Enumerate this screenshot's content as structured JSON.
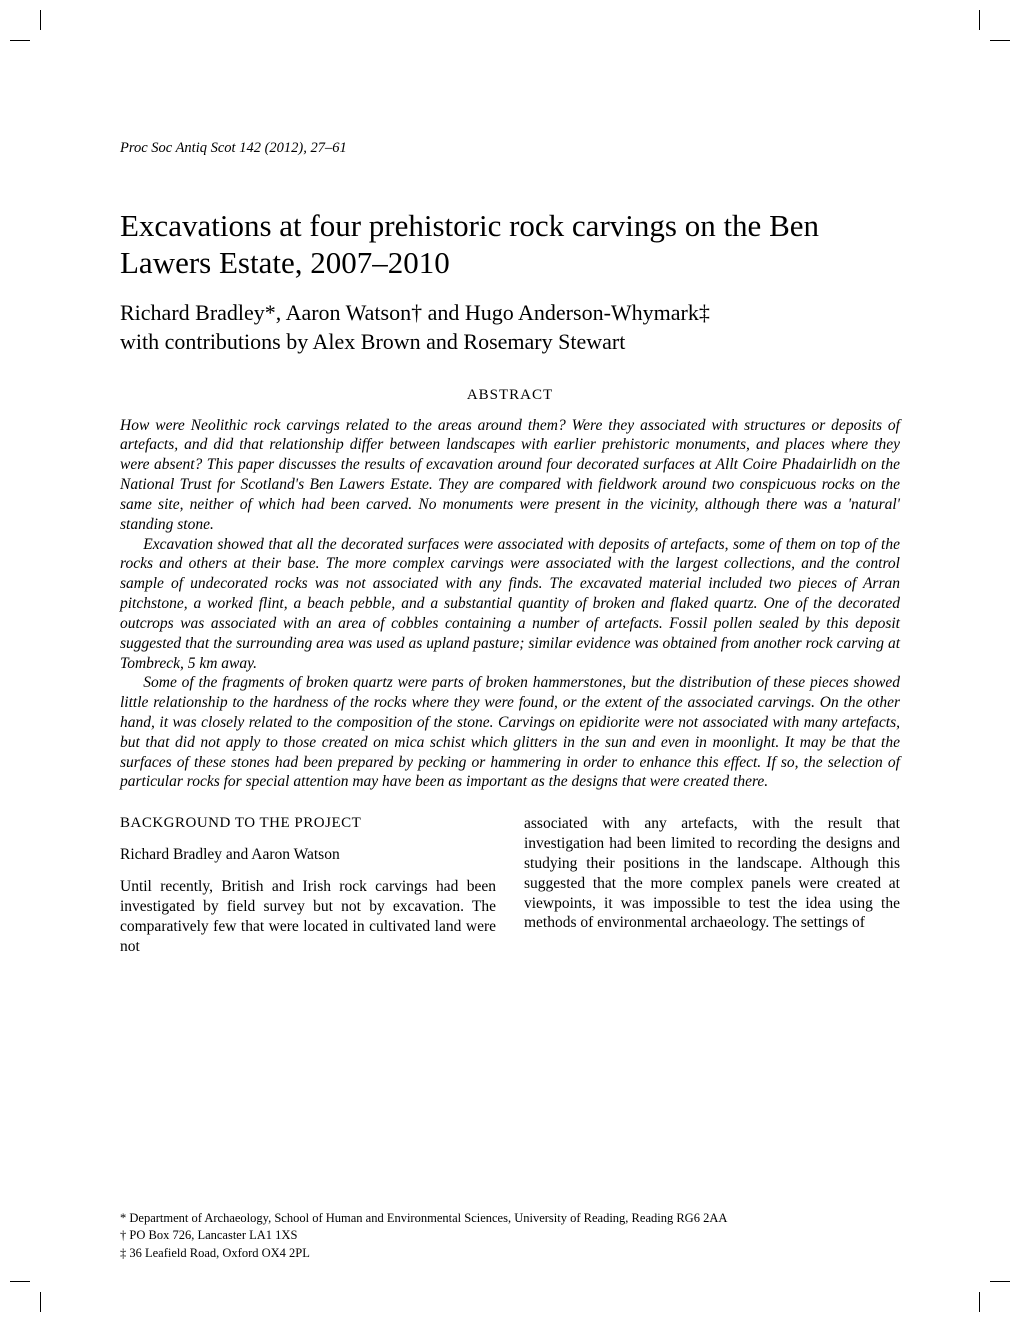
{
  "running_head": "Proc Soc Antiq Scot 142 (2012), 27–61",
  "title": "Excavations at four prehistoric rock carvings on the Ben Lawers Estate, 2007–2010",
  "authors_line1": "Richard Bradley*, Aaron Watson† and Hugo Anderson-Whymark‡",
  "authors_line2": "with contributions by Alex Brown and Rosemary Stewart",
  "abstract_label": "ABSTRACT",
  "abstract": {
    "p1": "How were Neolithic rock carvings related to the areas around them? Were they associated with structures or deposits of artefacts, and did that relationship differ between landscapes with earlier prehistoric monuments, and places where they were absent? This paper discusses the results of excavation around four decorated surfaces at Allt Coire Phadairlidh on the National Trust for Scotland's Ben Lawers Estate. They are compared with fieldwork around two conspicuous rocks on the same site, neither of which had been carved. No monuments were present in the vicinity, although there was a 'natural' standing stone.",
    "p2": "Excavation showed that all the decorated surfaces were associated with deposits of artefacts, some of them on top of the rocks and others at their base. The more complex carvings were associated with the largest collections, and the control sample of undecorated rocks was not associated with any finds. The excavated material included two pieces of Arran pitchstone, a worked flint, a beach pebble, and a substantial quantity of broken and flaked quartz. One of the decorated outcrops was associated with an area of cobbles containing a number of artefacts. Fossil pollen sealed by this deposit suggested that the surrounding area was used as upland pasture; similar evidence was obtained from another rock carving at Tombreck, 5 km away.",
    "p3": "Some of the fragments of broken quartz were parts of broken hammerstones, but the distribution of these pieces showed little relationship to the hardness of the rocks where they were found, or the extent of the associated carvings. On the other hand, it was closely related to the composition of the stone. Carvings on epidiorite were not associated with many artefacts, but that did not apply to those created on mica schist which glitters in the sun and even in moonlight. It may be that the surfaces of these stones had been prepared by pecking or hammering in order to enhance this effect. If so, the selection of particular rocks for special attention may have been as important as the designs that were created there."
  },
  "section_head": "BACKGROUND TO THE PROJECT",
  "section_authors": "Richard Bradley and Aaron Watson",
  "body": {
    "col1": "Until recently, British and Irish rock carvings had been investigated by field survey but not by excavation. The comparatively few that were located in cultivated land were not",
    "col2": "associated with any artefacts, with the result that investigation had been limited to recording the designs and studying their positions in the landscape. Although this suggested that the more complex panels were created at viewpoints, it was impossible to test the idea using the methods of environmental archaeology. The settings of"
  },
  "footnotes": {
    "f1": "*  Department of Archaeology, School of Human and Environmental Sciences, University of Reading, Reading RG6 2AA",
    "f2": "†  PO Box 726, Lancaster LA1 1XS",
    "f3": "‡  36 Leafield Road, Oxford OX4 2PL"
  }
}
